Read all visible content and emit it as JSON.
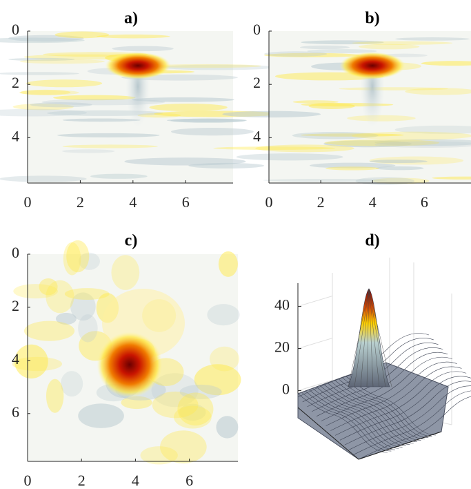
{
  "chart_data": [
    {
      "type": "heatmap",
      "title": "a)",
      "xlim": [
        0,
        7.8
      ],
      "ylim": [
        0,
        5.7
      ],
      "xticks": [
        0,
        2,
        4,
        6
      ],
      "yticks": [
        0,
        2,
        4
      ]
    },
    {
      "type": "heatmap",
      "title": "b)",
      "xlim": [
        0,
        7.8
      ],
      "ylim": [
        0,
        5.7
      ],
      "xticks": [
        0,
        2,
        4,
        6
      ],
      "yticks": [
        0,
        2,
        4
      ]
    },
    {
      "type": "heatmap",
      "title": "c)",
      "xlim": [
        0,
        7.8
      ],
      "ylim": [
        0,
        7.8
      ],
      "xticks": [
        0,
        2,
        4,
        6
      ],
      "yticks": [
        0,
        2,
        4,
        6
      ]
    },
    {
      "type": "surface",
      "title": "d)",
      "zlim": [
        -8,
        51
      ],
      "zticks": [
        0,
        20,
        40
      ]
    }
  ]
}
